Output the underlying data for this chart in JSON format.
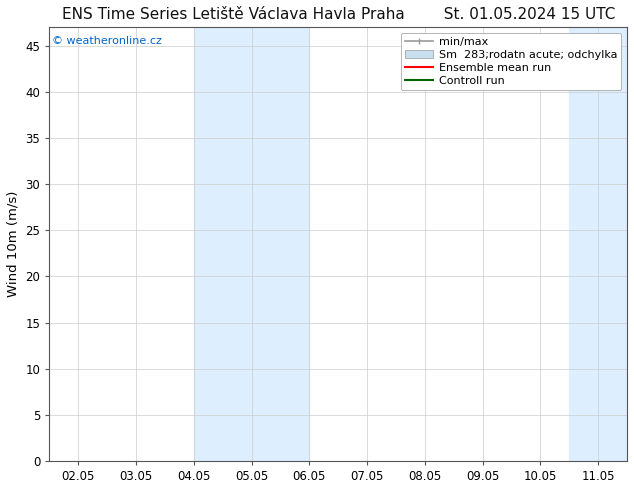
{
  "title": "ENS Time Series Letiště Václava Havla Praha        St. 01.05.2024 15 UTC",
  "ylabel": "Wind 10m (m/s)",
  "watermark": "© weatheronline.cz",
  "watermark_color": "#0066cc",
  "background_color": "#ffffff",
  "plot_bg_color": "#ffffff",
  "ylim": [
    0,
    47
  ],
  "yticks": [
    0,
    5,
    10,
    15,
    20,
    25,
    30,
    35,
    40,
    45
  ],
  "xtick_labels": [
    "02.05",
    "03.05",
    "04.05",
    "05.05",
    "06.05",
    "07.05",
    "08.05",
    "09.05",
    "10.05",
    "11.05"
  ],
  "xtick_positions": [
    0,
    1,
    2,
    3,
    4,
    5,
    6,
    7,
    8,
    9
  ],
  "xlim": [
    -0.5,
    9.5
  ],
  "shaded_regions": [
    {
      "xmin": 2.0,
      "xmax": 4.0,
      "color": "#ddeeff"
    },
    {
      "xmin": 8.5,
      "xmax": 9.5,
      "color": "#ddeeff"
    }
  ],
  "legend_labels": [
    "min/max",
    "Sm  283;rodatn acute; odchylka",
    "Ensemble mean run",
    "Controll run"
  ],
  "legend_colors": [
    "#aaaaaa",
    "#c8dff0",
    "#ff0000",
    "#006600"
  ],
  "title_fontsize": 11,
  "tick_fontsize": 8.5,
  "legend_fontsize": 8,
  "ylabel_fontsize": 9.5,
  "grid_color": "#cccccc",
  "spine_color": "#555555"
}
